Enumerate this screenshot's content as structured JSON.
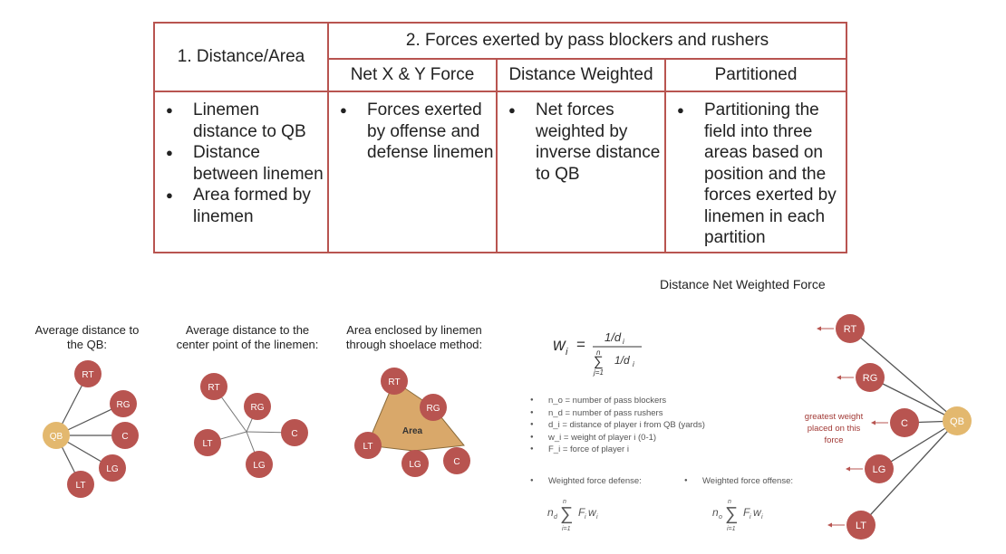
{
  "table": {
    "col1_header": "1.   Distance/Area",
    "group_header": "2. Forces exerted by pass blockers and rushers",
    "sub_headers": [
      "Net X & Y Force",
      "Distance Weighted",
      "Partitioned"
    ],
    "col1_items": [
      "Linemen distance to QB",
      "Distance between linemen",
      "Area formed by linemen"
    ],
    "col2_items": [
      "Forces exerted by offense and defense linemen"
    ],
    "col3_items": [
      "Net forces weighted by inverse distance to QB"
    ],
    "col4_items": [
      "Partitioning the field into three areas based on position and the forces exerted by linemen in each partition"
    ]
  },
  "diagrams": {
    "avg_qb": {
      "caption_line1": "Average distance to",
      "caption_line2": "the QB:"
    },
    "center": {
      "caption_line1": "Average distance to the",
      "caption_line2": "center point of the linemen:"
    },
    "area": {
      "caption_line1": "Area enclosed by linemen",
      "caption_line2": "through shoelace method:",
      "area_label": "Area"
    },
    "players": {
      "RT": "RT",
      "RG": "RG",
      "C": "C",
      "LG": "LG",
      "LT": "LT",
      "QB": "QB"
    }
  },
  "formula": {
    "lhs": "w",
    "sub": "i",
    "numerator": "1/d",
    "denominator_sum_top": "n",
    "denominator_sum_bottom": "j=1",
    "denominator_term": "1/d"
  },
  "legend": [
    "n_o = number of pass blockers",
    "n_d = number of pass rushers",
    "d_i = distance of player i from QB (yards)",
    "w_i = weight of player i (0-1)",
    "F_i = force of player i"
  ],
  "weighted_force": {
    "defense_label": "Weighted force defense:",
    "offense_label": "Weighted force offense:"
  },
  "net_weighted": {
    "title": "Distance Net Weighted Force",
    "annotation_line1": "greatest weight",
    "annotation_line2": "placed on this",
    "annotation_line3": "force"
  },
  "colors": {
    "lineman": "#b85450",
    "qb": "#e3b86e",
    "border": "#b85450",
    "annotation": "#a23a36"
  }
}
